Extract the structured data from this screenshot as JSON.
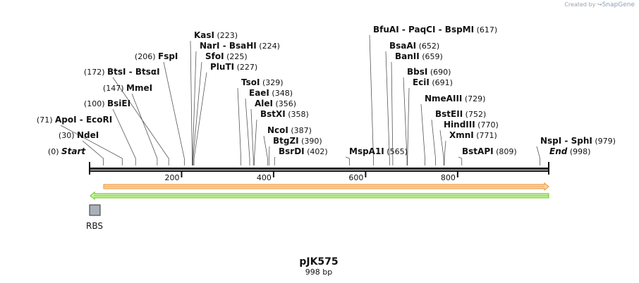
{
  "credit": {
    "prefix": "Created by",
    "brand": "SnapGene"
  },
  "plasmid": {
    "name": "pJK575",
    "length_label": "998 bp",
    "length": 998
  },
  "axis": {
    "ticks": [
      {
        "value": 200,
        "label": "200"
      },
      {
        "value": 400,
        "label": "400"
      },
      {
        "value": 600,
        "label": "600"
      },
      {
        "value": 800,
        "label": "800"
      }
    ]
  },
  "sites": [
    {
      "id": "start",
      "parts": [
        "Start"
      ],
      "italic": true,
      "pos": "(0)",
      "bp": 0,
      "side": "right"
    },
    {
      "id": "ndei",
      "parts": [
        "NdeI"
      ],
      "pos": "(30)",
      "bp": 30,
      "side": "left"
    },
    {
      "id": "apoi",
      "parts": [
        "ApoI",
        "EcoRI"
      ],
      "pos": "(71)",
      "bp": 71,
      "side": "left"
    },
    {
      "id": "bsiei",
      "parts": [
        "BsiEI"
      ],
      "pos": "(100)",
      "bp": 100,
      "side": "left"
    },
    {
      "id": "mmei",
      "parts": [
        "MmeI"
      ],
      "pos": "(147)",
      "bp": 147,
      "side": "left"
    },
    {
      "id": "btsi",
      "parts": [
        "BtsI",
        "BtsαI"
      ],
      "pos": "(172)",
      "bp": 172,
      "side": "left"
    },
    {
      "id": "fspi",
      "parts": [
        "FspI"
      ],
      "pos": "(206)",
      "bp": 206,
      "side": "left"
    },
    {
      "id": "kasi",
      "parts": [
        "KasI"
      ],
      "pos": "(223)",
      "bp": 223,
      "side": "right"
    },
    {
      "id": "nari",
      "parts": [
        "NarI",
        "BsaHI"
      ],
      "pos": "(224)",
      "bp": 224,
      "side": "right"
    },
    {
      "id": "sfoi",
      "parts": [
        "SfoI"
      ],
      "pos": "(225)",
      "bp": 225,
      "side": "right"
    },
    {
      "id": "pluti",
      "parts": [
        "PluTI"
      ],
      "pos": "(227)",
      "bp": 227,
      "side": "right"
    },
    {
      "id": "tsoi",
      "parts": [
        "TsoI"
      ],
      "pos": "(329)",
      "bp": 329,
      "side": "right"
    },
    {
      "id": "eaei",
      "parts": [
        "EaeI"
      ],
      "pos": "(348)",
      "bp": 348,
      "side": "right"
    },
    {
      "id": "alei",
      "parts": [
        "AleI"
      ],
      "pos": "(356)",
      "bp": 356,
      "side": "right"
    },
    {
      "id": "bstxi",
      "parts": [
        "BstXI"
      ],
      "pos": "(358)",
      "bp": 358,
      "side": "right"
    },
    {
      "id": "ncoi",
      "parts": [
        "NcoI"
      ],
      "pos": "(387)",
      "bp": 387,
      "side": "right"
    },
    {
      "id": "btgzi",
      "parts": [
        "BtgZI"
      ],
      "pos": "(390)",
      "bp": 390,
      "side": "right"
    },
    {
      "id": "bsrdi",
      "parts": [
        "BsrDI"
      ],
      "pos": "(402)",
      "bp": 402,
      "side": "right"
    },
    {
      "id": "mspa1i",
      "parts": [
        "MspA1I"
      ],
      "pos": "(565)",
      "bp": 565,
      "side": "right"
    },
    {
      "id": "bfuai",
      "parts": [
        "BfuAI",
        "PaqCI",
        "BspMI"
      ],
      "pos": "(617)",
      "bp": 617,
      "side": "right"
    },
    {
      "id": "bsaai",
      "parts": [
        "BsaAI"
      ],
      "pos": "(652)",
      "bp": 652,
      "side": "right"
    },
    {
      "id": "banii",
      "parts": [
        "BanII"
      ],
      "pos": "(659)",
      "bp": 659,
      "side": "right"
    },
    {
      "id": "bbsi",
      "parts": [
        "BbsI"
      ],
      "pos": "(690)",
      "bp": 690,
      "side": "right"
    },
    {
      "id": "ecii",
      "parts": [
        "EciI"
      ],
      "pos": "(691)",
      "bp": 691,
      "side": "right"
    },
    {
      "id": "nmeaiii",
      "parts": [
        "NmeAIII"
      ],
      "pos": "(729)",
      "bp": 729,
      "side": "right"
    },
    {
      "id": "bsteii",
      "parts": [
        "BstEII"
      ],
      "pos": "(752)",
      "bp": 752,
      "side": "right"
    },
    {
      "id": "hindiii",
      "parts": [
        "HindIII"
      ],
      "pos": "(770)",
      "bp": 770,
      "side": "right"
    },
    {
      "id": "xmni",
      "parts": [
        "XmnI"
      ],
      "pos": "(771)",
      "bp": 771,
      "side": "right"
    },
    {
      "id": "bstapi",
      "parts": [
        "BstAPI"
      ],
      "pos": "(809)",
      "bp": 809,
      "side": "right"
    },
    {
      "id": "nspi",
      "parts": [
        "NspI",
        "SphI"
      ],
      "pos": "(979)",
      "bp": 979,
      "side": "right"
    },
    {
      "id": "end",
      "parts": [
        "End"
      ],
      "italic": true,
      "pos": "(998)",
      "bp": 998,
      "side": "right"
    }
  ],
  "features": [
    {
      "name": "forward-arrow-feature",
      "direction": "forward",
      "start": 30,
      "end": 998,
      "color": "#f0a14a",
      "inner": "#f7d6a8"
    },
    {
      "name": "reverse-arrow-feature",
      "direction": "reverse",
      "start": 0,
      "end": 998,
      "color": "#7ccf3a",
      "inner": "#c8f0a8"
    }
  ],
  "rbs": {
    "label": "RBS",
    "color": "#a9b0ba",
    "bp": 0
  }
}
